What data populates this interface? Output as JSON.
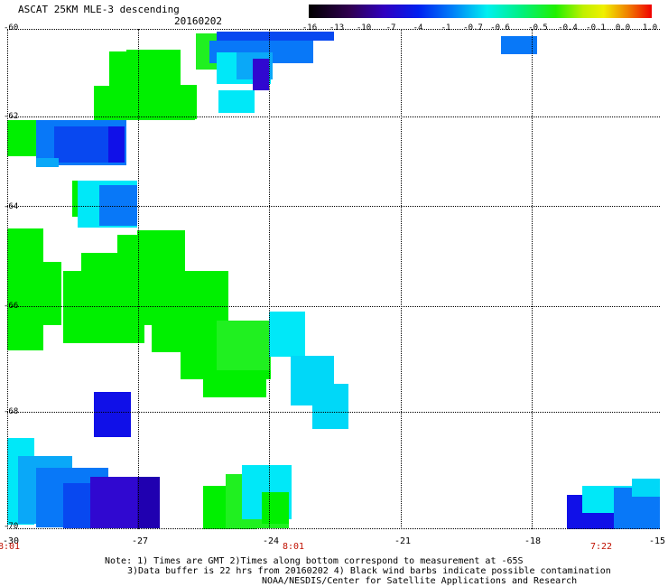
{
  "header": {
    "title": "ASCAT 25KM MLE-3 descending",
    "date": "20160202"
  },
  "legend": {
    "labels": [
      "-16",
      "-13",
      "-10",
      "-7",
      "-4",
      "-1",
      "-0.7",
      "-0.6",
      "-0.5",
      "-0.4",
      "-0.1",
      "0.0",
      "1.0"
    ]
  },
  "axes": {
    "lat_labels": [
      "-60",
      "-62",
      "-64",
      "-66",
      "-68",
      "-70"
    ],
    "lon_labels": [
      "-30",
      "-27",
      "-24",
      "-21",
      "-18",
      "-15"
    ],
    "time_labels": [
      "8:01",
      "8:01",
      "7:22"
    ]
  },
  "notes": {
    "line1": "Note: 1) Times are GMT 2)Times along bottom correspond to measurement at -65S",
    "line2": "3)Data buffer is 22 hrs from 20160202 4) Black wind barbs indicate possible contamination",
    "line3": "NOAA/NESDIS/Center for Satellite Applications and Research"
  },
  "colors": {
    "green": "#00f000",
    "green2": "#20f020",
    "cyan": "#00e8f8",
    "lightcyan": "#00d8f8",
    "skyblue": "#0aa8f8",
    "blue": "#0878f8",
    "deepblue": "#0848f0",
    "royal": "#1010e8",
    "indigo": "#3008d0",
    "navy": "#2000b0"
  }
}
